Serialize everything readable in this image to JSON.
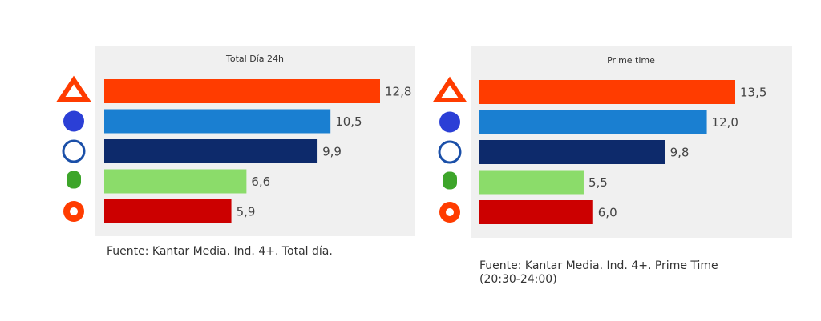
{
  "chart_data": [
    {
      "type": "bar",
      "title": "Total Día 24h",
      "categories": [
        null,
        null,
        null,
        null,
        null
      ],
      "values": [
        12.8,
        10.5,
        9.9,
        6.6,
        5.9
      ],
      "value_labels": [
        "12,8",
        "10,5",
        "9,9",
        "6,6",
        "5,9"
      ],
      "colors": [
        "#ff3c00",
        "#1a7fd1",
        "#0d2a6b",
        "#8bdc6a",
        "#cc0000"
      ],
      "source": "Fuente: Kantar Media. Ind. 4+. Total día."
    },
    {
      "type": "bar",
      "title": "Prime time",
      "categories": [
        null,
        null,
        null,
        null,
        null
      ],
      "values": [
        13.5,
        12.0,
        9.8,
        5.5,
        6.0
      ],
      "value_labels": [
        "13,5",
        "12,0",
        "9,8",
        "5,5",
        "6,0"
      ],
      "colors": [
        "#ff3c00",
        "#1a7fd1",
        "#0d2a6b",
        "#8bdc6a",
        "#cc0000"
      ],
      "source": "Fuente: Kantar Media. Ind. 4+. Prime Time (20:30-24:00)"
    }
  ]
}
